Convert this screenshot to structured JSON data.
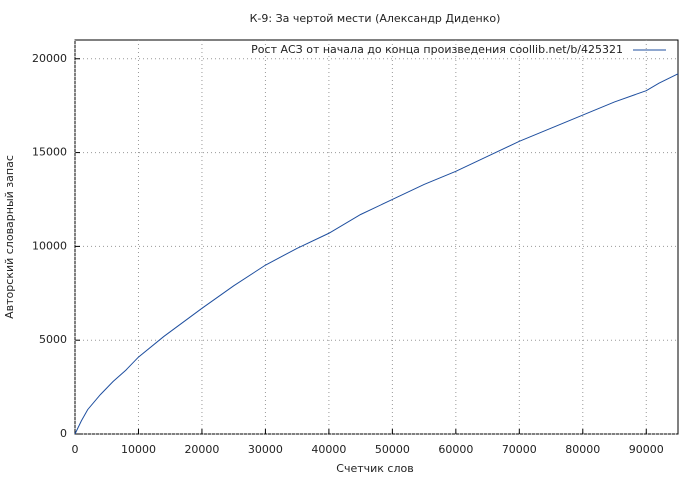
{
  "chart_data": {
    "type": "line",
    "title": "К-9: За чертой мести (Александр Диденко)",
    "x_label": "Счетчик слов",
    "y_label": "Авторский словарный запас",
    "x": [
      0,
      1000,
      2000,
      4000,
      6000,
      8000,
      10000,
      14000,
      20000,
      25000,
      30000,
      35000,
      40000,
      45000,
      50000,
      55000,
      60000,
      65000,
      70000,
      75000,
      80000,
      85000,
      90000,
      92000,
      95000
    ],
    "series": [
      {
        "name": "Рост АСЗ от начала до конца произведения  coollib.net/b/425321",
        "color": "#1f4f9f",
        "values": [
          0,
          700,
          1300,
          2100,
          2800,
          3400,
          4100,
          5200,
          6700,
          7900,
          9000,
          9900,
          10700,
          11700,
          12500,
          13300,
          14000,
          14800,
          15600,
          16300,
          17000,
          17700,
          18300,
          18700,
          19200
        ]
      }
    ],
    "xlim": [
      0,
      95000
    ],
    "ylim": [
      0,
      21000
    ],
    "xticks": [
      0,
      10000,
      20000,
      30000,
      40000,
      50000,
      60000,
      70000,
      80000,
      90000
    ],
    "yticks": [
      0,
      5000,
      10000,
      15000,
      20000
    ],
    "grid": true,
    "legend": "top-right"
  }
}
